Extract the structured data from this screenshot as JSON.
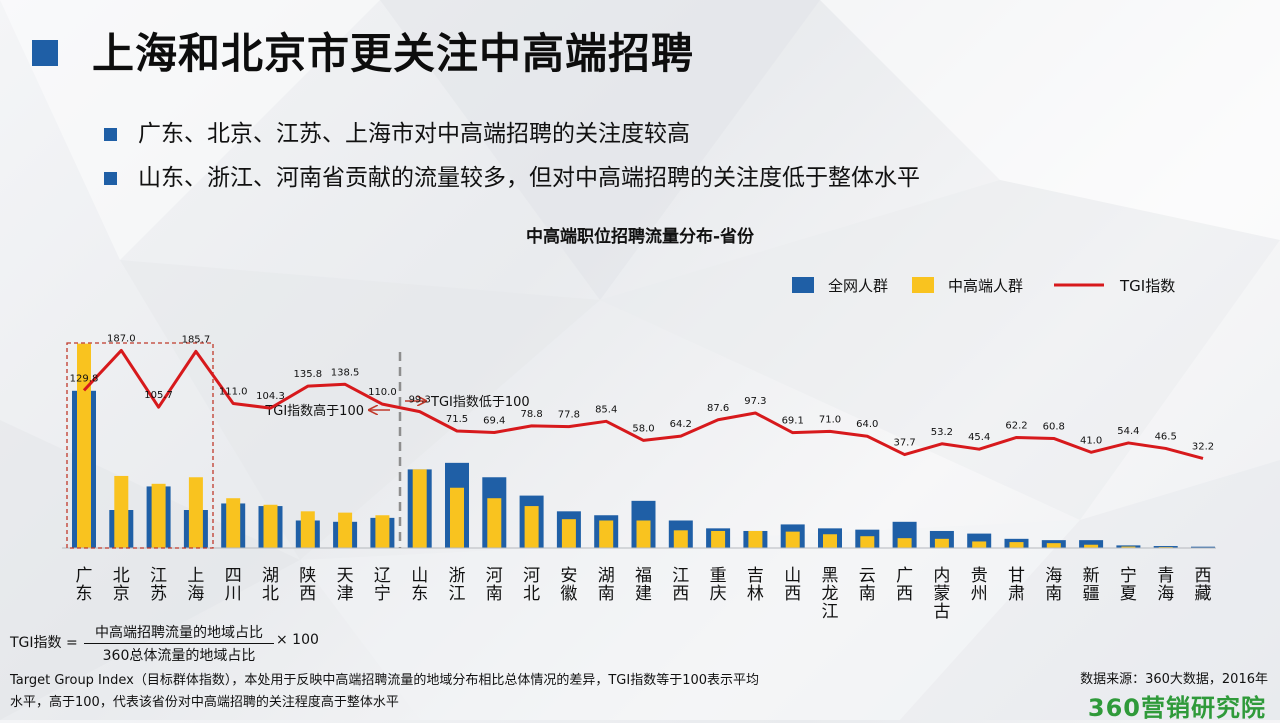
{
  "page": {
    "title": "上海和北京市更关注中高端招聘",
    "bullets": [
      "广东、北京、江苏、上海市对中高端招聘的关注度较高",
      "山东、浙江、河南省贡献的流量较多，但对中高端招聘的关注度低于整体水平"
    ]
  },
  "chart_data": {
    "type": "bar",
    "title": "中高端职位招聘流量分布-省份",
    "categories": [
      "广东",
      "北京",
      "江苏",
      "上海",
      "四川",
      "湖北",
      "陕西",
      "天津",
      "辽宁",
      "山东",
      "浙江",
      "河南",
      "河北",
      "安徽",
      "湖南",
      "福建",
      "江西",
      "重庆",
      "吉林",
      "山西",
      "黑龙江",
      "云南",
      "广西",
      "内蒙古",
      "贵州",
      "甘肃",
      "海南",
      "新疆",
      "宁夏",
      "青海",
      "西藏"
    ],
    "series": [
      {
        "name": "全网人群",
        "type": "bar",
        "color": "#1f5fa6",
        "values": [
          12.0,
          2.9,
          4.7,
          2.9,
          3.4,
          3.2,
          2.1,
          2.0,
          2.3,
          6.0,
          6.5,
          5.4,
          4.0,
          2.8,
          2.5,
          3.6,
          2.1,
          1.5,
          1.3,
          1.8,
          1.5,
          1.4,
          2.0,
          1.3,
          1.1,
          0.7,
          0.6,
          0.6,
          0.2,
          0.15,
          0.1
        ]
      },
      {
        "name": "中高端人群",
        "type": "bar",
        "color": "#f9c31f",
        "values": [
          15.6,
          5.5,
          4.9,
          5.4,
          3.8,
          3.3,
          2.8,
          2.7,
          2.5,
          6.0,
          4.6,
          3.8,
          3.2,
          2.2,
          2.1,
          2.1,
          1.35,
          1.3,
          1.3,
          1.25,
          1.05,
          0.9,
          0.75,
          0.7,
          0.5,
          0.45,
          0.37,
          0.25,
          0.11,
          0.07,
          0.03
        ]
      },
      {
        "name": "TGI指数",
        "type": "line",
        "color": "#d7191c",
        "values": [
          129.8,
          187.0,
          105.7,
          185.7,
          111.0,
          104.3,
          135.8,
          138.5,
          110.0,
          99.3,
          71.5,
          69.4,
          78.8,
          77.8,
          85.4,
          58.0,
          64.2,
          87.6,
          97.3,
          69.1,
          71.0,
          64.0,
          37.7,
          53.2,
          45.4,
          62.2,
          60.8,
          41.0,
          54.4,
          46.5,
          32.2
        ],
        "labels": [
          "129.8",
          "187.0",
          "105.7",
          "185.7",
          "111.0",
          "104.3",
          "135.8",
          "138.5",
          "110.0",
          "99.3",
          "71.5",
          "69.4",
          "78.8",
          "77.8",
          "85.4",
          "58.0",
          "64.2",
          "87.6",
          "97.3",
          "69.1",
          "71.0",
          "64.0",
          "37.7",
          "53.2",
          "45.4",
          "62.2",
          "60.8",
          "41.0",
          "54.4",
          "46.5",
          "32.2"
        ]
      }
    ],
    "legend": {
      "position": "top-right",
      "items": [
        "全网人群",
        "中高端人群",
        "TGI指数"
      ]
    },
    "annotations": {
      "divider_label_left": "TGI指数高于100",
      "divider_label_right": "TGI指数低于100",
      "highlight_categories": [
        "广东",
        "北京",
        "江苏",
        "上海"
      ]
    },
    "grid": false
  },
  "formula": {
    "lhs": "TGI指数 =",
    "numerator": "中高端招聘流量的地域占比",
    "denominator": "360总体流量的地域占比",
    "rhs": "× 100"
  },
  "footnote": {
    "line1": "Target Group Index（目标群体指数），本处用于反映中高端招聘流量的地域分布相比总体情况的差异，TGI指数等于100表示平均",
    "line2": "水平，高于100，代表该省份对中高端招聘的关注程度高于整体水平"
  },
  "source": "数据来源：360大数据，2016年",
  "logo": "360营销研究院",
  "colors": {
    "accent": "#1f5fa6",
    "yellow": "#f9c31f",
    "red": "#d7191c",
    "logo": "#2f9a3a"
  }
}
